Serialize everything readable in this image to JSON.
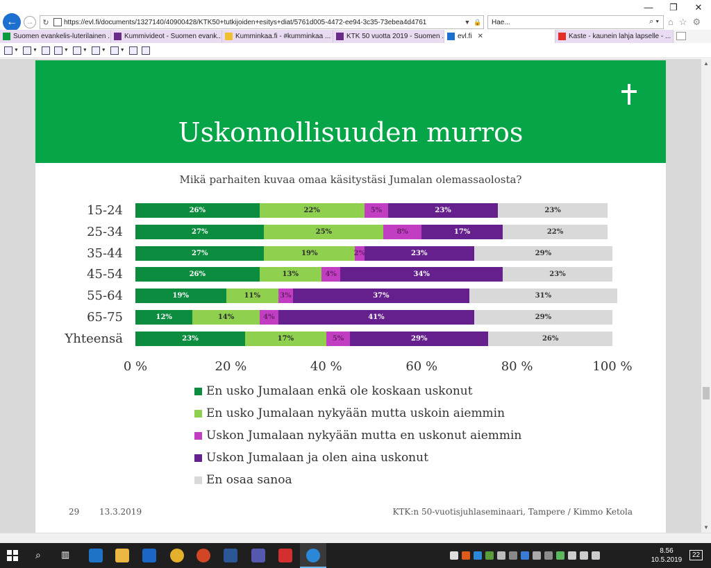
{
  "browser": {
    "url": "https://evl.fi/documents/1327140/40900428/KTK50+tutkijoiden+esitys+diat/5761d005-4472-ee94-3c35-73ebea4d4761",
    "search_placeholder": "Hae...",
    "tabs": [
      {
        "label": "Suomen evankelis-luterilainen ...",
        "color": "#0a9a3c",
        "active": false
      },
      {
        "label": "Kummivideot - Suomen evank...",
        "color": "#6a2a8a",
        "active": false
      },
      {
        "label": "Kumminkaa.fi - #kumminkaa ...",
        "color": "#f0c030",
        "active": false
      },
      {
        "label": "KTK 50 vuotta 2019 - Suomen ...",
        "color": "#6a2a8a",
        "active": false
      },
      {
        "label": "evl.fi",
        "color": "#1d6fd0",
        "active": true
      },
      {
        "label": "Kaste - kaunein lahja lapselle - ...",
        "color": "#e52d27",
        "active": false
      }
    ]
  },
  "slide": {
    "title": "Uskonnollisuuden murros",
    "question": "Mikä parhaiten kuvaa omaa käsitystäsi Jumalan olemassaolosta?",
    "page_number": "29",
    "date": "13.3.2019",
    "footer": "KTK:n 50-vuotisjuhlaseminaari, Tampere / Kimmo Ketola"
  },
  "chart_data": {
    "type": "bar",
    "orientation": "horizontal",
    "stacked": true,
    "percent_stacked": true,
    "categories": [
      "15-24",
      "25-34",
      "35-44",
      "45-54",
      "55-64",
      "65-75",
      "Yhteensä"
    ],
    "series": [
      {
        "name": "En usko Jumalaan enkä ole koskaan uskonut",
        "color": "#0c8c3f",
        "label_color": "#ffffff",
        "values": [
          26,
          27,
          27,
          26,
          19,
          12,
          23
        ]
      },
      {
        "name": "En usko Jumalaan nykyään mutta uskoin aiemmin",
        "color": "#8fd14f",
        "label_color": "#2b2b2b",
        "values": [
          22,
          25,
          19,
          13,
          11,
          14,
          17
        ]
      },
      {
        "name": "Uskon Jumalaan nykyään mutta en uskonut aiemmin",
        "color": "#c13ec2",
        "label_color": "#6a1f6a",
        "values": [
          5,
          8,
          2,
          4,
          3,
          4,
          5
        ]
      },
      {
        "name": "Uskon Jumalaan ja olen aina uskonut",
        "color": "#65208d",
        "label_color": "#ffffff",
        "values": [
          23,
          17,
          23,
          34,
          37,
          41,
          29
        ]
      },
      {
        "name": "En osaa sanoa",
        "color": "#d9d9d9",
        "label_color": "#333333",
        "values": [
          23,
          22,
          29,
          23,
          31,
          29,
          26
        ]
      }
    ],
    "x_ticks": [
      "0 %",
      "20 %",
      "40 %",
      "60 %",
      "80 %",
      "100 %"
    ],
    "xlim": [
      0,
      100
    ],
    "legend_position": "bottom",
    "grid": false
  },
  "taskbar": {
    "time": "8.56",
    "date": "10.5.2019",
    "notifications": "22"
  }
}
